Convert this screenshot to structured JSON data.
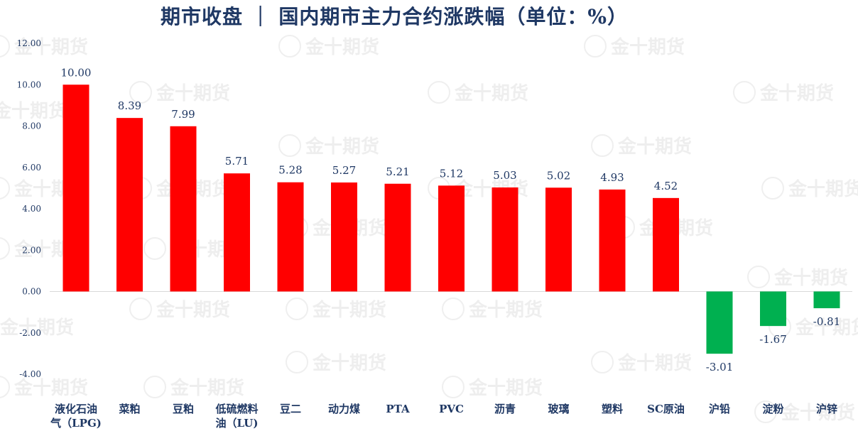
{
  "chart_data": {
    "type": "bar",
    "title": "期市收盘 ｜ 国内期市主力合约涨跌幅（单位：%）",
    "categories": [
      "液化石油气（LPG)",
      "菜粕",
      "豆粕",
      "低硫燃料油（LU)",
      "豆二",
      "动力煤",
      "PTA",
      "PVC",
      "沥青",
      "玻璃",
      "塑料",
      "SC原油",
      "沪铅",
      "淀粉",
      "沪锌"
    ],
    "category_lines": [
      [
        "液化石油",
        "气（LPG)"
      ],
      [
        "菜粕"
      ],
      [
        "豆粕"
      ],
      [
        "低硫燃料",
        "油（LU)"
      ],
      [
        "豆二"
      ],
      [
        "动力煤"
      ],
      [
        "PTA"
      ],
      [
        "PVC"
      ],
      [
        "沥青"
      ],
      [
        "玻璃"
      ],
      [
        "塑料"
      ],
      [
        "SC原油"
      ],
      [
        "沪铅"
      ],
      [
        "淀粉"
      ],
      [
        "沪锌"
      ]
    ],
    "values": [
      10.0,
      8.39,
      7.99,
      5.71,
      5.28,
      5.27,
      5.21,
      5.12,
      5.03,
      5.02,
      4.93,
      4.52,
      -3.01,
      -1.67,
      -0.81
    ],
    "value_labels": [
      "10.00",
      "8.39",
      "7.99",
      "5.71",
      "5.28",
      "5.27",
      "5.21",
      "5.12",
      "5.03",
      "5.02",
      "4.93",
      "4.52",
      "-3.01",
      "-1.67",
      "-0.81"
    ],
    "ylim": [
      -4,
      12
    ],
    "y_ticks": [
      12,
      10,
      8,
      6,
      4,
      2,
      0,
      -2,
      -4
    ],
    "y_tick_labels": [
      "12.00",
      "10.00",
      "8.00",
      "6.00",
      "4.00",
      "2.00",
      "0.00",
      "-2.00",
      "-4.00"
    ],
    "xlabel": "",
    "ylabel": "",
    "grid": false,
    "legend": "none",
    "colors": {
      "positive": "#ff0000",
      "negative": "#00b050",
      "text": "#1f3864",
      "axis": "#d9d9d9"
    }
  },
  "watermark": {
    "text": "金十期货"
  }
}
